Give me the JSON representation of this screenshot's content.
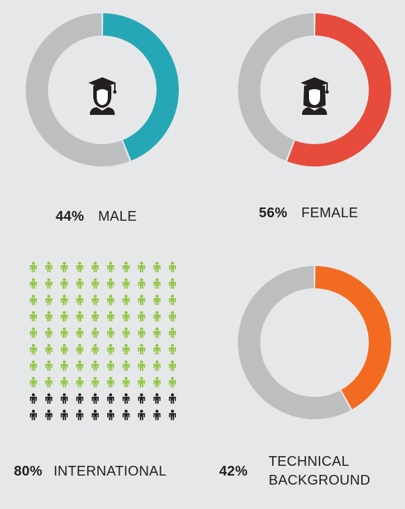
{
  "colors": {
    "track": "#bcbec0",
    "male": "#26a7b5",
    "female": "#e64b3c",
    "technical": "#f26b21",
    "international": "#8dc63f",
    "domestic": "#231f20",
    "background": "#e6e7e8"
  },
  "stats": {
    "male": {
      "pct": "44%",
      "label": "MALE"
    },
    "female": {
      "pct": "56%",
      "label": "FEMALE"
    },
    "international": {
      "pct": "80%",
      "label": "INTERNATIONAL"
    },
    "technical": {
      "pct": "42%",
      "label_line1": "TECHNICAL",
      "label_line2": "BACKGROUND"
    }
  },
  "icons": {
    "male": "graduate-male-icon",
    "female": "graduate-female-icon",
    "person": "person-icon"
  },
  "chart_data": [
    {
      "type": "pie",
      "categories": [
        "MALE",
        ""
      ],
      "values": [
        44,
        56
      ],
      "colors": [
        "#26a7b5",
        "#bcbec0"
      ]
    },
    {
      "type": "pie",
      "categories": [
        "FEMALE",
        ""
      ],
      "values": [
        56,
        44
      ],
      "colors": [
        "#e64b3c",
        "#bcbec0"
      ]
    },
    {
      "type": "table",
      "categories": [
        "INTERNATIONAL",
        ""
      ],
      "values": [
        80,
        20
      ],
      "rows": 10,
      "cols": 10,
      "colors": [
        "#8dc63f",
        "#231f20"
      ]
    },
    {
      "type": "pie",
      "categories": [
        "TECHNICAL BACKGROUND",
        ""
      ],
      "values": [
        42,
        58
      ],
      "colors": [
        "#f26b21",
        "#bcbec0"
      ]
    }
  ]
}
